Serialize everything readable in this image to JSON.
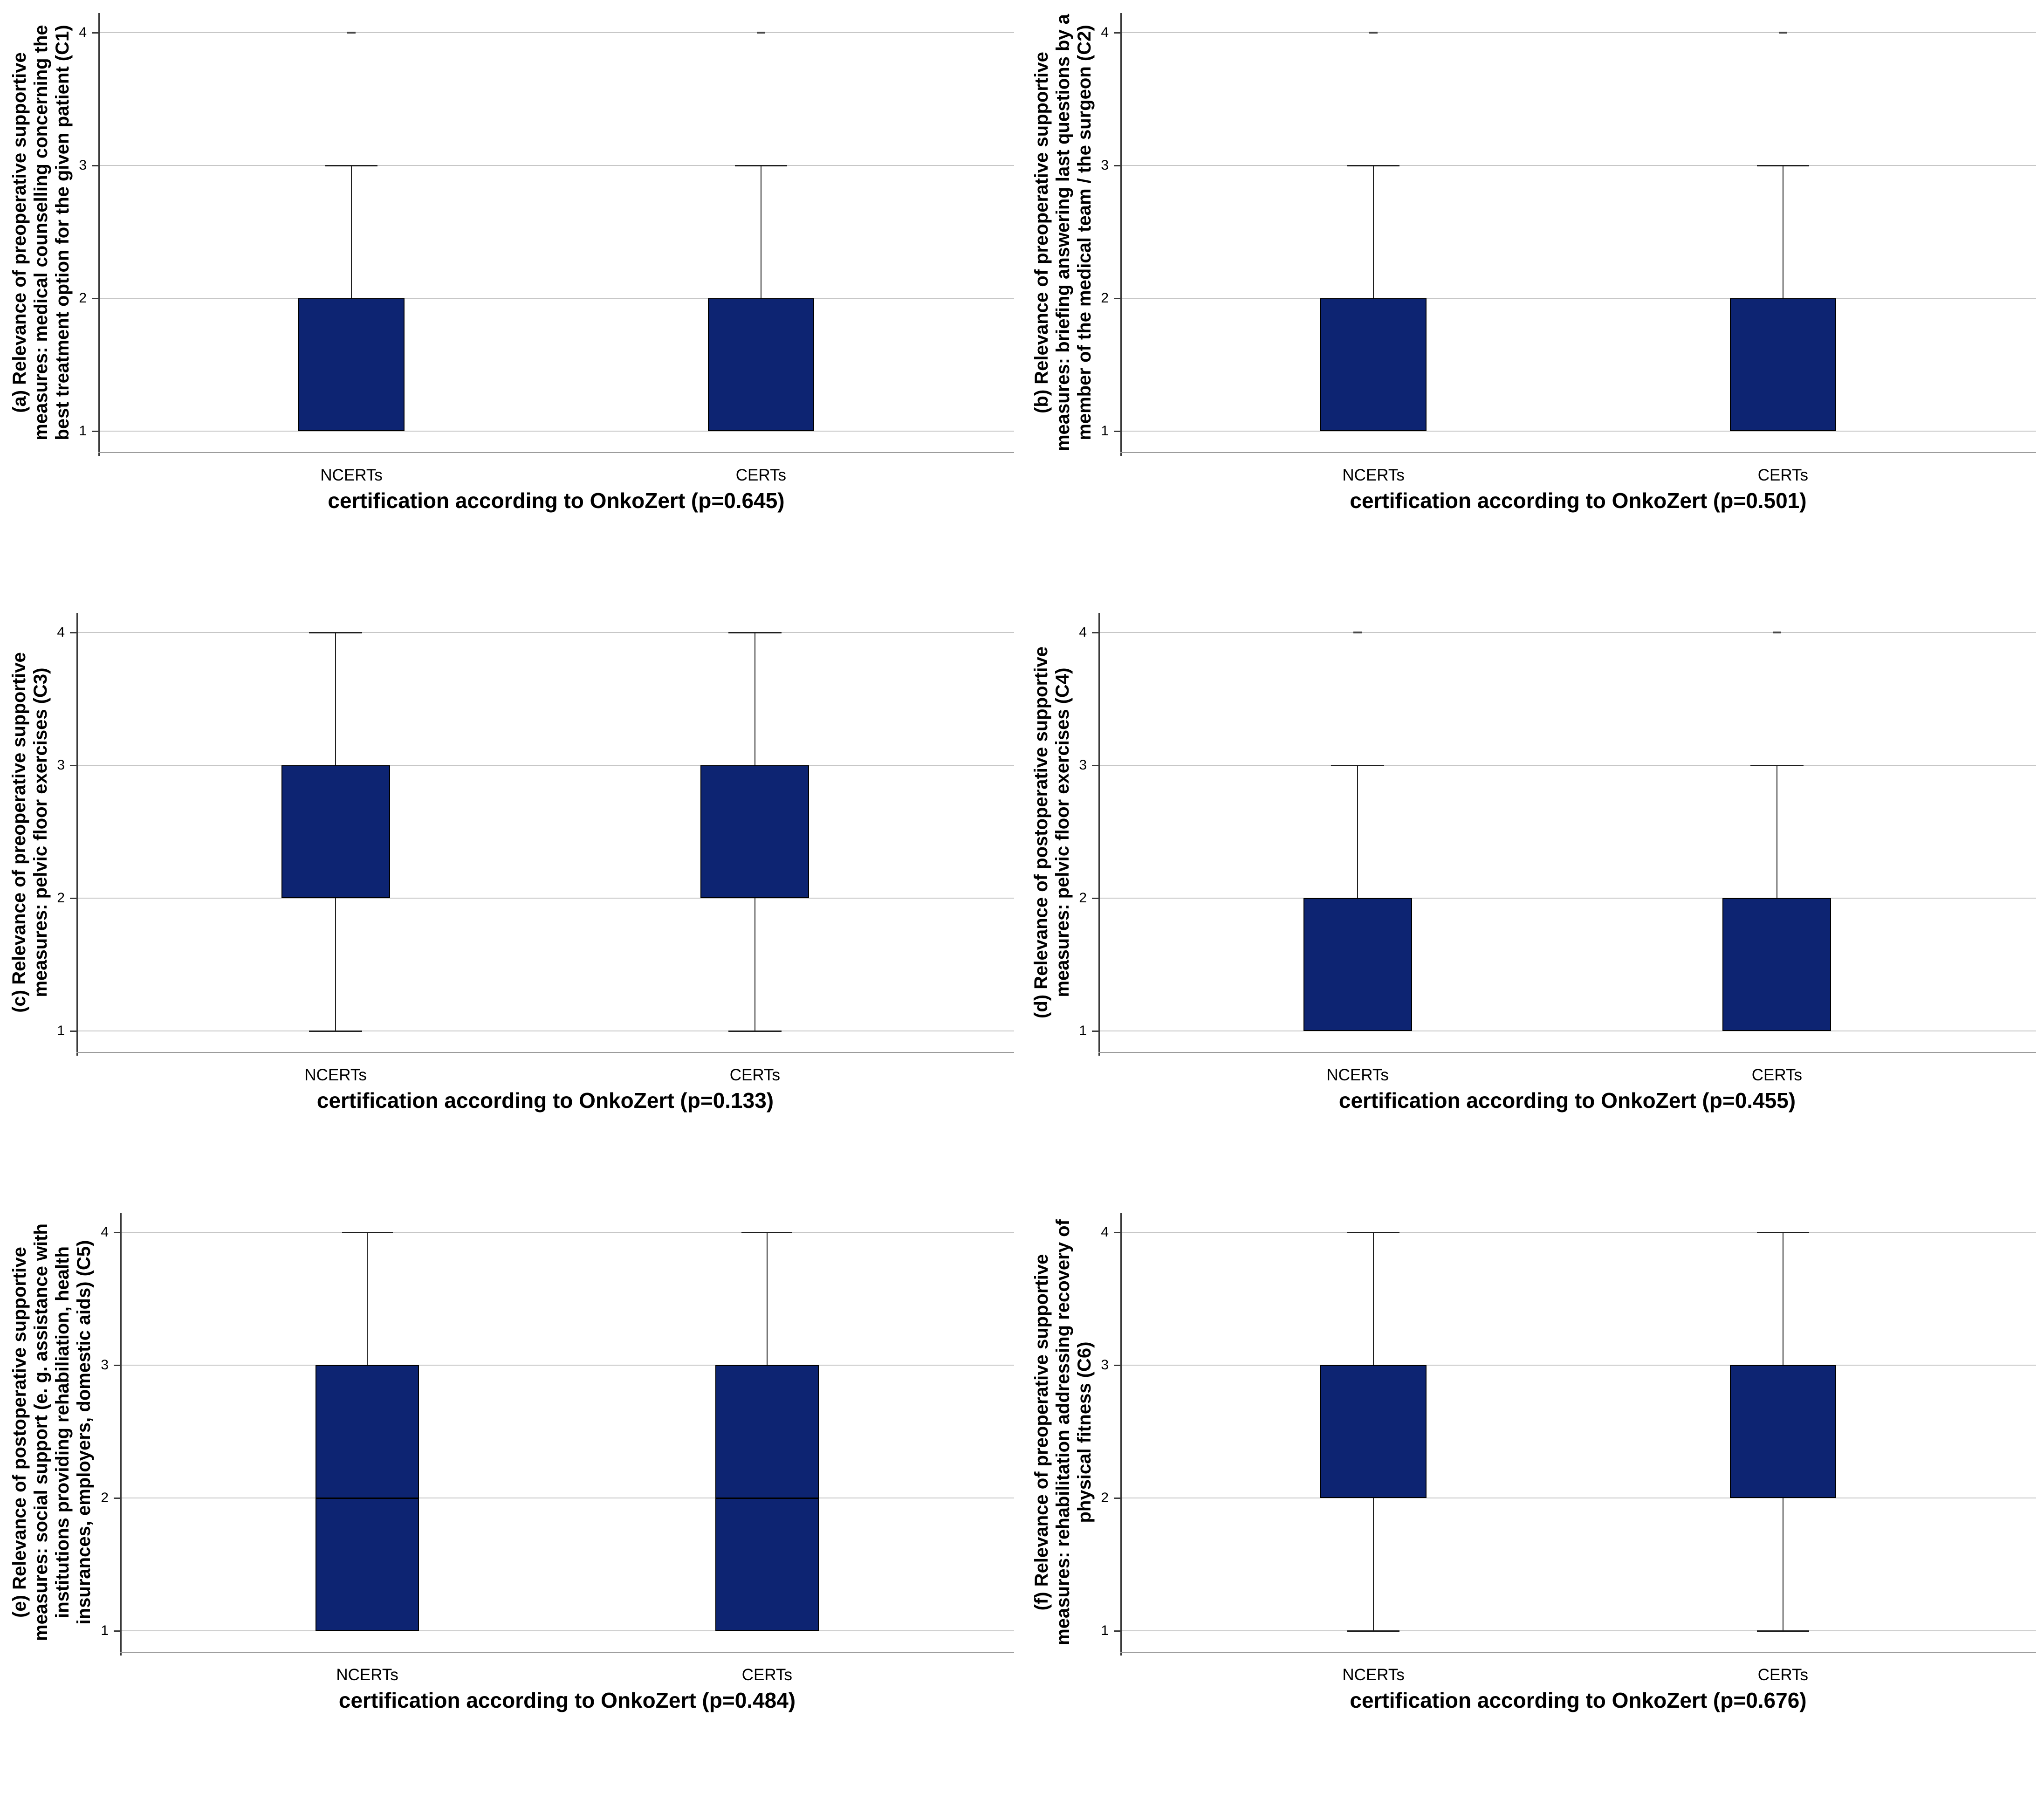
{
  "page": {
    "background": "#ffffff"
  },
  "styles": {
    "box_fill": "#0d2472",
    "box_border": "#000000",
    "whisker_color": "#1f1f1f",
    "median_color": "#000000",
    "gridline_color": "#c7c7c7",
    "left_spine_color": "#3a3a3a",
    "bottom_spine_color": "#9c9c9c",
    "extreme_mark_color": "#474747",
    "text_color": "#000000"
  },
  "chart_data": [
    {
      "type": "box",
      "panel": "a",
      "ylabel": "(a) Relevance of preoperative supportive\nmeasures: medical counselling concerning the\nbest treatment option for the given patient (C1)",
      "xlabel": "certification according to OnkoZert (p=0.645)",
      "p_value": 0.645,
      "categories": [
        "NCERTs",
        "CERTs"
      ],
      "ylim": [
        1,
        4
      ],
      "yticks": [
        1,
        2,
        3,
        4
      ],
      "grid": true,
      "boxes": [
        {
          "category": "NCERTs",
          "q1": 1,
          "q3": 2,
          "median": null,
          "whisker_low": null,
          "whisker_high": 3,
          "extreme_at": 4
        },
        {
          "category": "CERTs",
          "q1": 1,
          "q3": 2,
          "median": null,
          "whisker_low": null,
          "whisker_high": 3,
          "extreme_at": 4
        }
      ]
    },
    {
      "type": "box",
      "panel": "b",
      "ylabel": "(b) Relevance of preoperative supportive\nmeasures: briefing answering last questions by a\nmember of the medical team / the surgeon (C2)",
      "xlabel": "certification according to OnkoZert (p=0.501)",
      "p_value": 0.501,
      "categories": [
        "NCERTs",
        "CERTs"
      ],
      "ylim": [
        1,
        4
      ],
      "yticks": [
        1,
        2,
        3,
        4
      ],
      "grid": true,
      "boxes": [
        {
          "category": "NCERTs",
          "q1": 1,
          "q3": 2,
          "median": null,
          "whisker_low": null,
          "whisker_high": 3,
          "extreme_at": 4
        },
        {
          "category": "CERTs",
          "q1": 1,
          "q3": 2,
          "median": null,
          "whisker_low": null,
          "whisker_high": 3,
          "extreme_at": 4
        }
      ]
    },
    {
      "type": "box",
      "panel": "c",
      "ylabel": "(c) Relevance of preoperative supportive\nmeasures: pelvic floor exercises (C3)",
      "xlabel": "certification according to OnkoZert (p=0.133)",
      "p_value": 0.133,
      "categories": [
        "NCERTs",
        "CERTs"
      ],
      "ylim": [
        1,
        4
      ],
      "yticks": [
        1,
        2,
        3,
        4
      ],
      "grid": true,
      "boxes": [
        {
          "category": "NCERTs",
          "q1": 2,
          "q3": 3,
          "median": null,
          "whisker_low": 1,
          "whisker_high": 4,
          "extreme_at": null
        },
        {
          "category": "CERTs",
          "q1": 2,
          "q3": 3,
          "median": null,
          "whisker_low": 1,
          "whisker_high": 4,
          "extreme_at": null
        }
      ]
    },
    {
      "type": "box",
      "panel": "d",
      "ylabel": "(d) Relevance of postoperative supportive\nmeasures: pelvic floor exercises (C4)",
      "xlabel": "certification according to OnkoZert (p=0.455)",
      "p_value": 0.455,
      "categories": [
        "NCERTs",
        "CERTs"
      ],
      "ylim": [
        1,
        4
      ],
      "yticks": [
        1,
        2,
        3,
        4
      ],
      "grid": true,
      "boxes": [
        {
          "category": "NCERTs",
          "q1": 1,
          "q3": 2,
          "median": null,
          "whisker_low": null,
          "whisker_high": 3,
          "extreme_at": 4
        },
        {
          "category": "CERTs",
          "q1": 1,
          "q3": 2,
          "median": null,
          "whisker_low": null,
          "whisker_high": 3,
          "extreme_at": 4
        }
      ]
    },
    {
      "type": "box",
      "panel": "e",
      "ylabel": "(e) Relevance of postoperative supportive\nmeasures: social support (e. g. assistance with\ninstitutions providing rehabiliation, health\ninsurances, employers, domestic aids) (C5)",
      "xlabel": "certification according to OnkoZert (p=0.484)",
      "p_value": 0.484,
      "categories": [
        "NCERTs",
        "CERTs"
      ],
      "ylim": [
        1,
        4
      ],
      "yticks": [
        1,
        2,
        3,
        4
      ],
      "grid": true,
      "boxes": [
        {
          "category": "NCERTs",
          "q1": 1,
          "q3": 3,
          "median": 2,
          "whisker_low": null,
          "whisker_high": 4,
          "extreme_at": null
        },
        {
          "category": "CERTs",
          "q1": 1,
          "q3": 3,
          "median": 2,
          "whisker_low": null,
          "whisker_high": 4,
          "extreme_at": null
        }
      ]
    },
    {
      "type": "box",
      "panel": "f",
      "ylabel": "(f) Relevance of preoperative supportive\nmeasures: rehabilitation addressing recovery of\nphysical fitness (C6)",
      "xlabel": "certification according to OnkoZert (p=0.676)",
      "p_value": 0.676,
      "categories": [
        "NCERTs",
        "CERTs"
      ],
      "ylim": [
        1,
        4
      ],
      "yticks": [
        1,
        2,
        3,
        4
      ],
      "grid": true,
      "boxes": [
        {
          "category": "NCERTs",
          "q1": 2,
          "q3": 3,
          "median": null,
          "whisker_low": 1,
          "whisker_high": 4,
          "extreme_at": null
        },
        {
          "category": "CERTs",
          "q1": 2,
          "q3": 3,
          "median": null,
          "whisker_low": 1,
          "whisker_high": 4,
          "extreme_at": null
        }
      ]
    }
  ]
}
